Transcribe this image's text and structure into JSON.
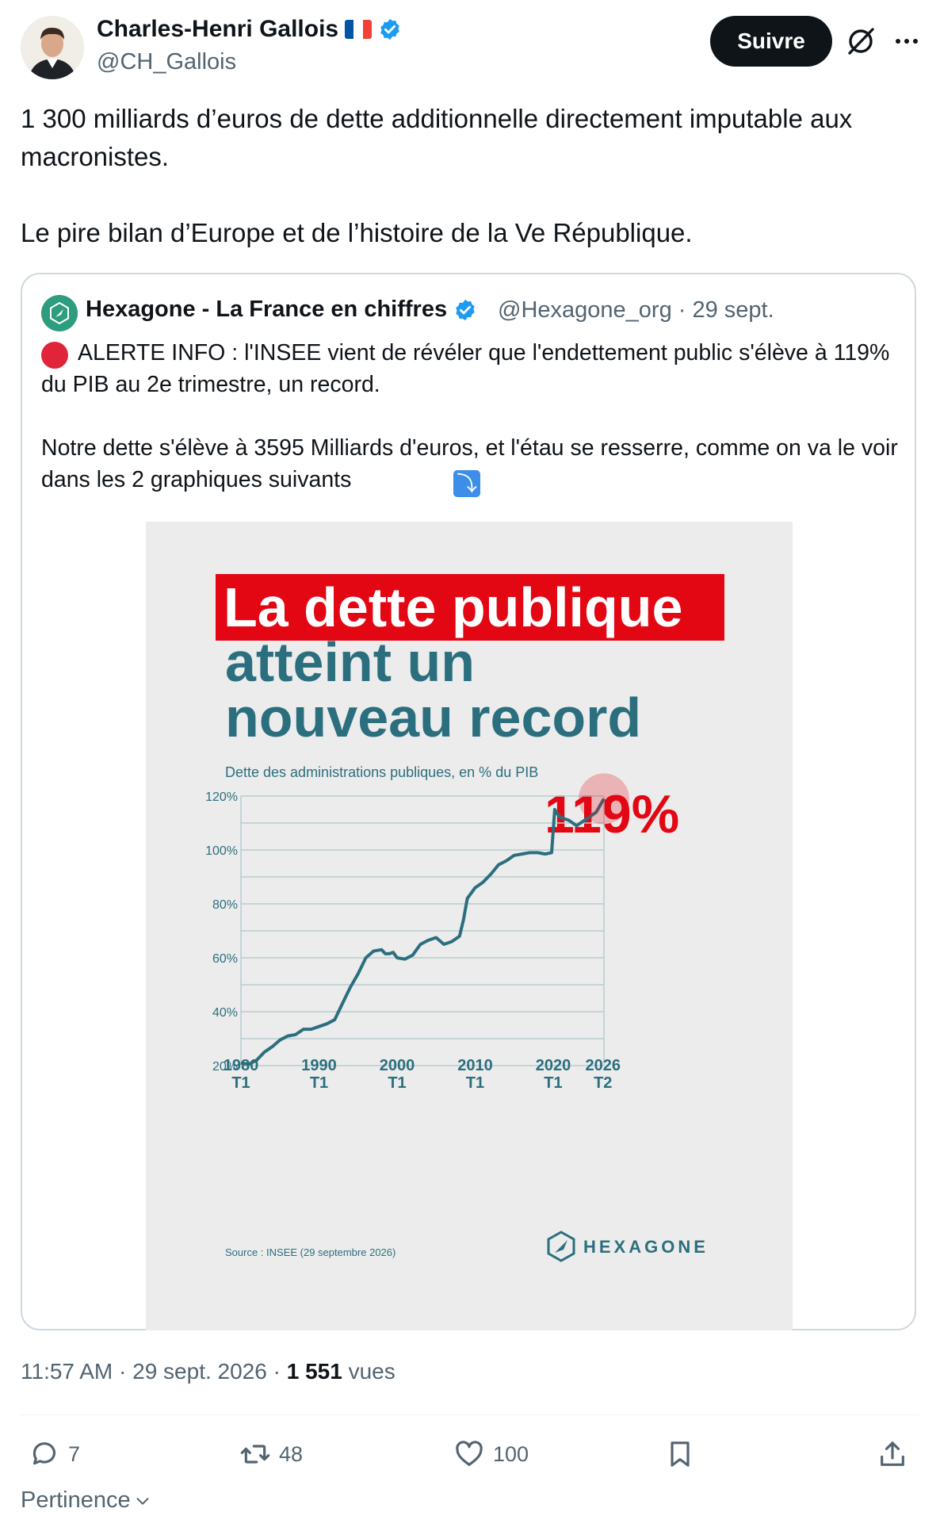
{
  "tweet": {
    "author_name": "Charles-Henri Gallois",
    "author_handle": "@CH_Gallois",
    "follow_label": "Suivre",
    "text": "1 300 milliards d’euros de dette additionnelle directement imputable aux macronistes.\n\nLe pire bilan d’Europe et de l’histoire de la Ve République.",
    "time": "11:57 AM",
    "date": "29 sept. 2026",
    "views_count": "1 551",
    "views_label": "vues"
  },
  "quoted": {
    "name": "Hexagone - La France en chiffres",
    "handle": "@Hexagone_org",
    "date": "29 sept.",
    "text": "ALERTE INFO : l'INSEE vient de révéler que l'endettement public s'élève à 119% du PIB au 2e trimestre, un record.\n\nNotre dette s'élève à 3595 Milliards d'euros, et l'étau se resserre, comme on va le voir dans les 2 graphiques suivants"
  },
  "infographic": {
    "title_line1": "La dette publique",
    "title_line2": "atteint un",
    "title_line3": "nouveau record",
    "subtitle": "Dette des administrations publiques, en % du PIB",
    "highlight": "119%",
    "source": "Source : INSEE (29 septembre 2026)",
    "brand": "HEXAGONE"
  },
  "chart_data": {
    "type": "line",
    "title": "La dette publique atteint un nouveau record",
    "subtitle": "Dette des administrations publiques, en % du PIB",
    "ylim": [
      20,
      120
    ],
    "yticks": [
      "20%",
      "40%",
      "60%",
      "80%",
      "100%",
      "120%"
    ],
    "xlim": [
      1980,
      2026.5
    ],
    "xticks": [
      {
        "year": "1980",
        "quarter": "T1"
      },
      {
        "year": "1990",
        "quarter": "T1"
      },
      {
        "year": "2000",
        "quarter": "T1"
      },
      {
        "year": "2010",
        "quarter": "T1"
      },
      {
        "year": "2020",
        "quarter": "T1"
      },
      {
        "year": "2026",
        "quarter": "T2"
      }
    ],
    "grid": true,
    "series": [
      {
        "x": [
          1980,
          1981,
          1982,
          1983,
          1984,
          1985,
          1986,
          1987,
          1988,
          1989,
          1990,
          1991,
          1992,
          1993,
          1994,
          1995,
          1996,
          1997,
          1998,
          1998.5,
          1999,
          1999.5,
          2000,
          2001,
          2002,
          2003,
          2004,
          2005,
          2006,
          2007,
          2008,
          2008.5,
          2009,
          2010,
          2011,
          2012,
          2013,
          2014,
          2015,
          2016,
          2017,
          2018,
          2019,
          2019.8,
          2020.2,
          2020.5,
          2021,
          2022,
          2023,
          2024,
          2025,
          2025.5,
          2026,
          2026.5
        ],
        "values": [
          21,
          20.5,
          22,
          25,
          27,
          29.5,
          31,
          31.5,
          33.5,
          33.5,
          34.5,
          35.5,
          37,
          43,
          49,
          54,
          60,
          62.5,
          63,
          61.5,
          61.5,
          62,
          60,
          59.5,
          61,
          65,
          66.5,
          67.5,
          65,
          66,
          68,
          74,
          82,
          86,
          88,
          91,
          94.5,
          96,
          98,
          98.5,
          99,
          99,
          98.5,
          99,
          115,
          113.5,
          112,
          111,
          109,
          111,
          113,
          114,
          116.5,
          119
        ]
      }
    ]
  },
  "actions": {
    "replies": "7",
    "retweets": "48",
    "likes": "100"
  },
  "sort_label": "Pertinence",
  "colors": {
    "accent_red": "#e30613",
    "chart_teal": "#2b6f7e",
    "verified_blue": "#1d9bf0",
    "muted_text": "#536471"
  }
}
